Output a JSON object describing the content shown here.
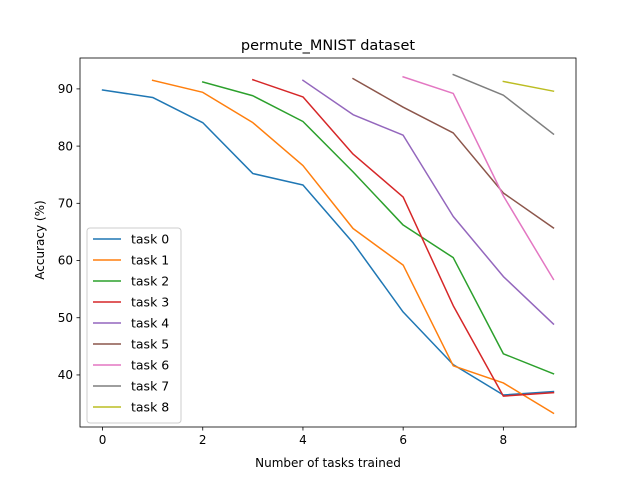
{
  "chart_data": {
    "type": "line",
    "title": "permute_MNIST dataset",
    "xlabel": "Number of tasks trained",
    "ylabel": "Accuracy (%)",
    "xlim": [
      -0.45,
      9.45
    ],
    "ylim": [
      30.9,
      95.4
    ],
    "xticks": [
      0,
      2,
      4,
      6,
      8
    ],
    "yticks": [
      40,
      50,
      60,
      70,
      80,
      90
    ],
    "grid": false,
    "legend_position": "lower-left",
    "series": [
      {
        "name": "task 0",
        "color": "#1f77b4",
        "x": [
          0,
          1,
          2,
          3,
          4,
          5,
          6,
          7,
          8,
          9
        ],
        "values": [
          89.8,
          88.5,
          84.1,
          75.2,
          73.2,
          63.1,
          51.0,
          41.8,
          36.5,
          37.1
        ]
      },
      {
        "name": "task 1",
        "color": "#ff7f0e",
        "x": [
          1,
          2,
          3,
          4,
          5,
          6,
          7,
          8,
          9
        ],
        "values": [
          91.5,
          89.4,
          84.1,
          76.6,
          65.6,
          59.2,
          41.6,
          38.6,
          33.3
        ]
      },
      {
        "name": "task 2",
        "color": "#2ca02c",
        "x": [
          2,
          3,
          4,
          5,
          6,
          7,
          8,
          9
        ],
        "values": [
          91.2,
          88.8,
          84.3,
          75.5,
          66.2,
          60.5,
          43.7,
          40.2
        ]
      },
      {
        "name": "task 3",
        "color": "#d62728",
        "x": [
          3,
          4,
          5,
          6,
          7,
          8,
          9
        ],
        "values": [
          91.6,
          88.6,
          78.6,
          71.1,
          52.1,
          36.3,
          36.9
        ]
      },
      {
        "name": "task 4",
        "color": "#9467bd",
        "x": [
          4,
          5,
          6,
          7,
          8,
          9
        ],
        "values": [
          91.5,
          85.5,
          81.9,
          67.7,
          57.2,
          48.9
        ]
      },
      {
        "name": "task 5",
        "color": "#8c564b",
        "x": [
          5,
          6,
          7,
          8,
          9
        ],
        "values": [
          91.8,
          86.8,
          82.3,
          71.8,
          65.7
        ]
      },
      {
        "name": "task 6",
        "color": "#e377c2",
        "x": [
          6,
          7,
          8,
          9
        ],
        "values": [
          92.1,
          89.2,
          71.3,
          56.7
        ]
      },
      {
        "name": "task 7",
        "color": "#7f7f7f",
        "x": [
          7,
          8,
          9
        ],
        "values": [
          92.5,
          88.9,
          82.1
        ]
      },
      {
        "name": "task 8",
        "color": "#bcbd22",
        "x": [
          8,
          9
        ],
        "values": [
          91.3,
          89.6
        ]
      }
    ]
  }
}
